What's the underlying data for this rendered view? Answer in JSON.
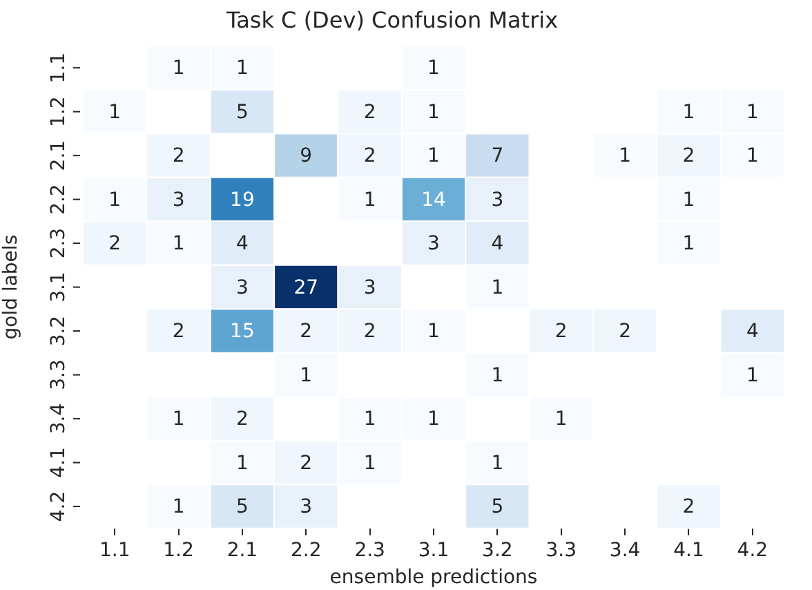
{
  "chart_data": {
    "type": "heatmap",
    "title": "Task C (Dev) Confusion Matrix",
    "xlabel": "ensemble predictions",
    "ylabel": "gold labels",
    "categories": [
      "1.1",
      "1.2",
      "2.1",
      "2.2",
      "2.3",
      "3.1",
      "3.2",
      "3.3",
      "3.4",
      "4.1",
      "4.2"
    ],
    "y_categories": [
      "1.1",
      "1.2",
      "2.1",
      "2.2",
      "2.3",
      "3.1",
      "3.2",
      "3.3",
      "3.4",
      "4.1",
      "4.2"
    ],
    "cells": [
      [
        null,
        1,
        1,
        null,
        null,
        1,
        null,
        null,
        null,
        null,
        null
      ],
      [
        1,
        null,
        5,
        null,
        2,
        1,
        null,
        null,
        null,
        1,
        1
      ],
      [
        null,
        2,
        null,
        9,
        2,
        1,
        7,
        null,
        1,
        2,
        1
      ],
      [
        1,
        3,
        19,
        null,
        1,
        14,
        3,
        null,
        null,
        1,
        null
      ],
      [
        2,
        1,
        4,
        null,
        null,
        3,
        4,
        null,
        null,
        1,
        null
      ],
      [
        null,
        null,
        3,
        27,
        3,
        null,
        1,
        null,
        null,
        null,
        null
      ],
      [
        null,
        2,
        15,
        2,
        2,
        1,
        null,
        2,
        2,
        null,
        4
      ],
      [
        null,
        null,
        null,
        1,
        null,
        null,
        1,
        null,
        null,
        null,
        1
      ],
      [
        null,
        1,
        2,
        null,
        1,
        1,
        null,
        1,
        null,
        null,
        null
      ],
      [
        null,
        null,
        1,
        2,
        1,
        null,
        1,
        null,
        null,
        null,
        null
      ],
      [
        null,
        1,
        5,
        3,
        null,
        null,
        5,
        null,
        null,
        2,
        null
      ]
    ],
    "data_labels": true
  }
}
